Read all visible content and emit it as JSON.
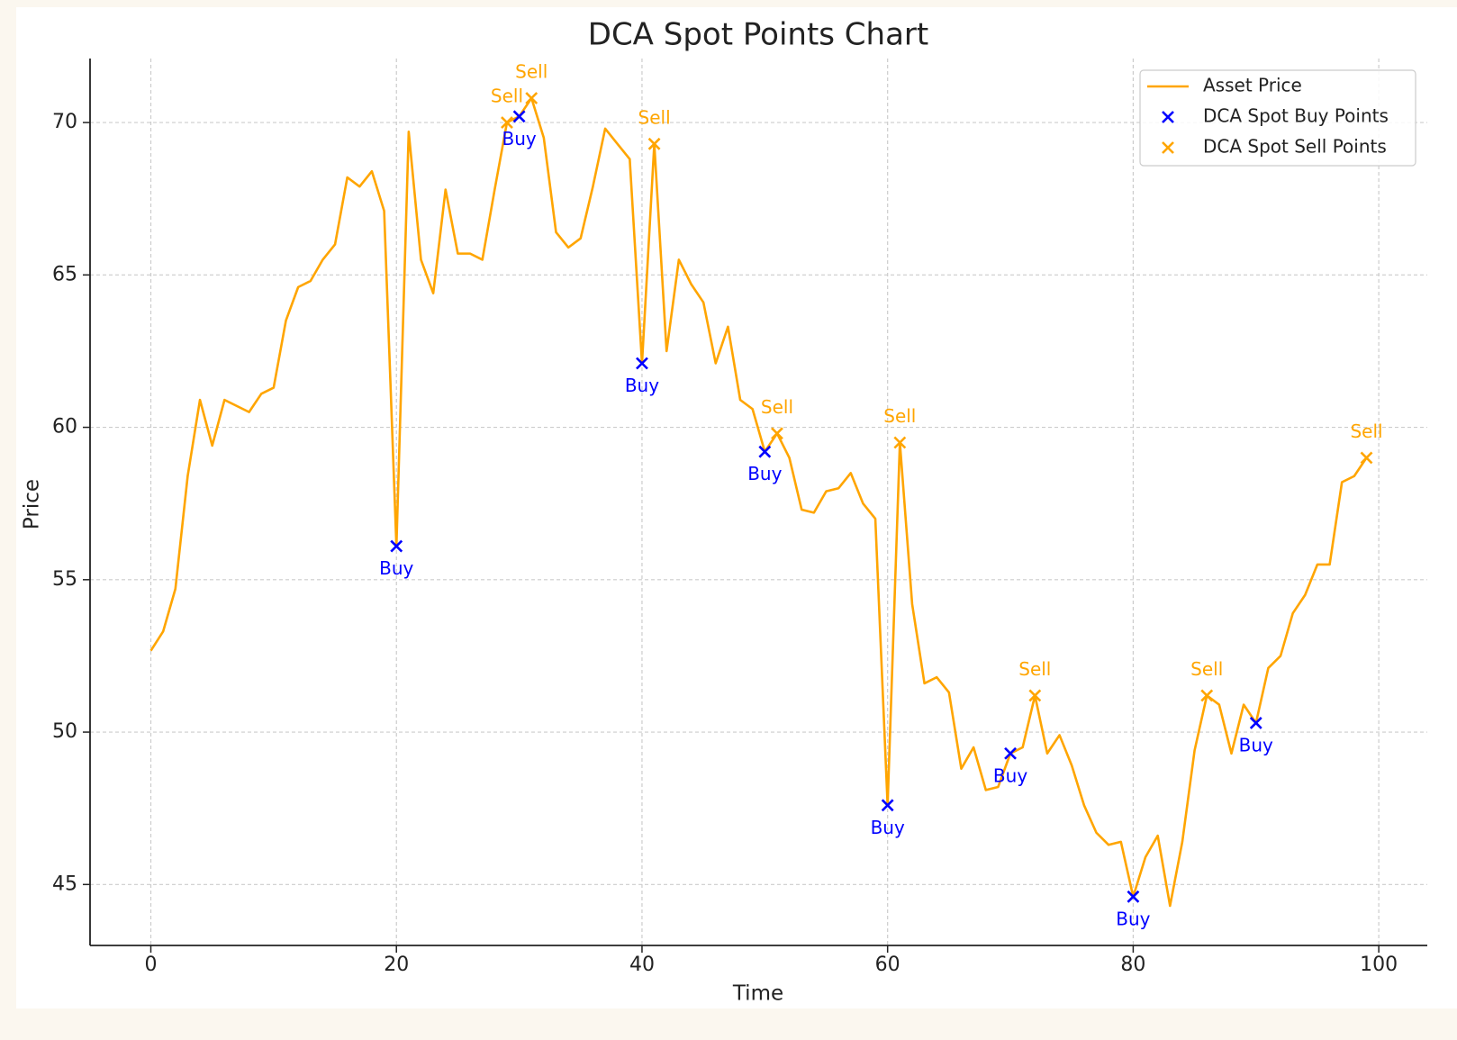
{
  "chart_data": {
    "type": "line",
    "title": "DCA Spot Points Chart",
    "xlabel": "Time",
    "ylabel": "Price",
    "xlim": [
      -4.95,
      103.95
    ],
    "ylim": [
      43.0,
      72.1
    ],
    "xticks": [
      0,
      20,
      40,
      60,
      80,
      100
    ],
    "yticks": [
      45,
      50,
      55,
      60,
      65,
      70
    ],
    "grid": true,
    "legend": "upper right",
    "series": [
      {
        "name": "Asset Price",
        "type": "line",
        "color": "#FFA500",
        "x": [
          0,
          1,
          2,
          3,
          4,
          5,
          6,
          7,
          8,
          9,
          10,
          11,
          12,
          13,
          14,
          15,
          16,
          17,
          18,
          19,
          20,
          21,
          22,
          23,
          24,
          25,
          26,
          27,
          28,
          29,
          30,
          31,
          32,
          33,
          34,
          35,
          36,
          37,
          38,
          39,
          40,
          41,
          42,
          43,
          44,
          45,
          46,
          47,
          48,
          49,
          50,
          51,
          52,
          53,
          54,
          55,
          56,
          57,
          58,
          59,
          60,
          61,
          62,
          63,
          64,
          65,
          66,
          67,
          68,
          69,
          70,
          71,
          72,
          73,
          74,
          75,
          76,
          77,
          78,
          79,
          80,
          81,
          82,
          83,
          84,
          85,
          86,
          87,
          88,
          89,
          90,
          91,
          92,
          93,
          94,
          95,
          96,
          97,
          98,
          99
        ],
        "values": [
          52.67,
          53.3,
          54.7,
          58.4,
          60.9,
          59.4,
          60.9,
          60.7,
          60.5,
          61.1,
          61.3,
          63.5,
          64.6,
          64.8,
          65.5,
          66.0,
          68.2,
          67.9,
          68.4,
          67.1,
          56.1,
          69.7,
          65.5,
          64.4,
          67.8,
          65.7,
          65.7,
          65.5,
          67.8,
          70.0,
          70.2,
          70.8,
          69.5,
          66.4,
          65.9,
          66.2,
          67.9,
          69.8,
          69.3,
          68.8,
          62.1,
          69.3,
          62.5,
          65.5,
          64.7,
          64.1,
          62.1,
          63.3,
          60.9,
          60.6,
          59.2,
          59.8,
          59.0,
          57.3,
          57.2,
          57.9,
          58.0,
          58.5,
          57.5,
          57.0,
          47.6,
          59.5,
          54.2,
          51.6,
          51.8,
          51.3,
          48.8,
          49.5,
          48.1,
          48.2,
          49.3,
          49.5,
          51.2,
          49.3,
          49.9,
          48.9,
          47.6,
          46.7,
          46.3,
          46.4,
          44.6,
          45.9,
          46.6,
          44.3,
          46.4,
          49.4,
          51.2,
          50.9,
          49.3,
          50.9,
          50.3,
          52.1,
          52.5,
          53.9,
          54.5,
          55.5,
          55.5,
          58.2,
          58.4,
          59.0
        ]
      },
      {
        "name": "DCA Spot Buy Points",
        "type": "scatter",
        "marker": "x",
        "color": "#0000FF",
        "x": [
          20,
          30,
          40,
          50,
          60,
          70,
          80,
          90
        ],
        "values": [
          56.1,
          70.2,
          62.1,
          59.2,
          47.6,
          49.3,
          44.6,
          50.3
        ],
        "labels": [
          "Buy",
          "Buy",
          "Buy",
          "Buy",
          "Buy",
          "Buy",
          "Buy",
          "Buy"
        ],
        "label_side": "below"
      },
      {
        "name": "DCA Spot Sell Points",
        "type": "scatter",
        "marker": "x",
        "color": "#FFA500",
        "x": [
          29,
          31,
          41,
          51,
          61,
          72,
          86,
          99
        ],
        "values": [
          70.0,
          70.8,
          69.3,
          59.8,
          59.5,
          51.2,
          51.2,
          59.0
        ],
        "labels": [
          "Sell",
          "Sell",
          "Sell",
          "Sell",
          "Sell",
          "Sell",
          "Sell",
          "Sell"
        ],
        "label_side": "above"
      }
    ]
  }
}
